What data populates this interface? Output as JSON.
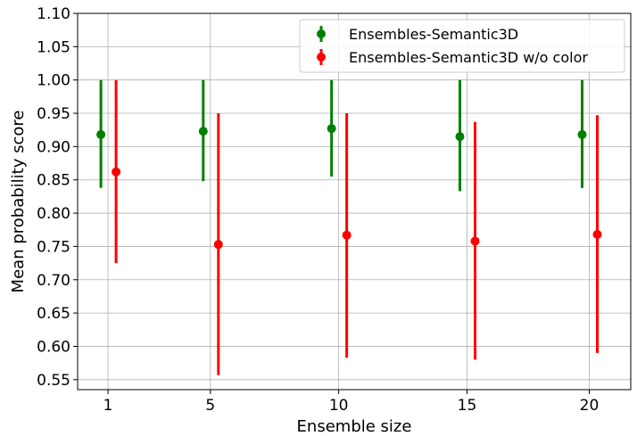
{
  "chart_data": {
    "type": "errorbar",
    "title": "",
    "xlabel": "Ensemble size",
    "ylabel": "Mean probability score",
    "xticks": [
      "1",
      "5",
      "10",
      "15",
      "20"
    ],
    "yticks": [
      "0.55",
      "0.60",
      "0.65",
      "0.70",
      "0.75",
      "0.80",
      "0.85",
      "0.90",
      "0.95",
      "1.00",
      "1.05",
      "1.10"
    ],
    "ylim": [
      0.535,
      1.1
    ],
    "grid": true,
    "legend_position": "top-right",
    "colors": {
      "green": "#008000",
      "red": "#ff0000"
    },
    "series": [
      {
        "name": "Ensembles-Semantic3D",
        "color": "#008000",
        "points": [
          {
            "category": "1",
            "y": 0.918,
            "low": 0.838,
            "high": 1.0
          },
          {
            "category": "5",
            "y": 0.923,
            "low": 0.848,
            "high": 1.0
          },
          {
            "category": "10",
            "y": 0.927,
            "low": 0.855,
            "high": 1.0
          },
          {
            "category": "15",
            "y": 0.915,
            "low": 0.833,
            "high": 1.0
          },
          {
            "category": "20",
            "y": 0.918,
            "low": 0.838,
            "high": 1.0
          }
        ]
      },
      {
        "name": "Ensembles-Semantic3D w/o color",
        "color": "#ff0000",
        "points": [
          {
            "category": "1",
            "y": 0.862,
            "low": 0.725,
            "high": 1.0
          },
          {
            "category": "5",
            "y": 0.753,
            "low": 0.557,
            "high": 0.95
          },
          {
            "category": "10",
            "y": 0.767,
            "low": 0.583,
            "high": 0.95
          },
          {
            "category": "15",
            "y": 0.758,
            "low": 0.58,
            "high": 0.937
          },
          {
            "category": "20",
            "y": 0.768,
            "low": 0.59,
            "high": 0.947
          }
        ]
      }
    ]
  }
}
